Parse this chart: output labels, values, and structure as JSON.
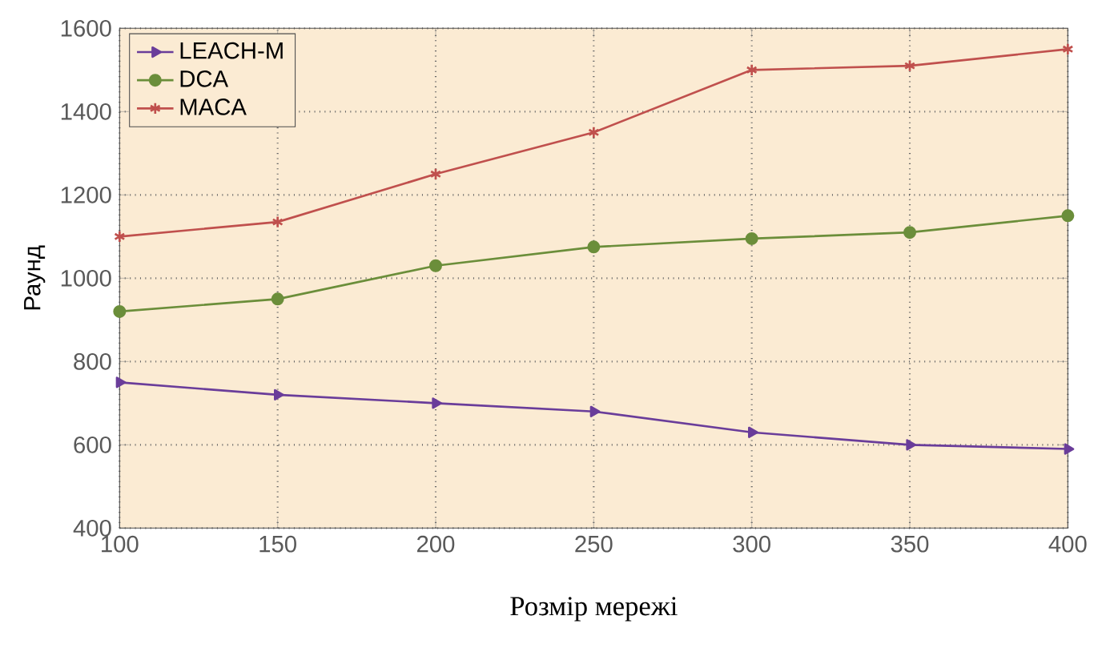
{
  "chart_data": {
    "type": "line",
    "xlabel": "Розмір мережі",
    "ylabel": "Раунд",
    "x": [
      100,
      150,
      200,
      250,
      300,
      350,
      400
    ],
    "series": [
      {
        "name": "LEACH-M",
        "color": "#6a3d9a",
        "marker": "triangle",
        "values": [
          750,
          720,
          700,
          680,
          630,
          600,
          590
        ]
      },
      {
        "name": "DCA",
        "color": "#6b8e3a",
        "marker": "circle",
        "values": [
          920,
          950,
          1030,
          1075,
          1095,
          1110,
          1150
        ]
      },
      {
        "name": "MACA",
        "color": "#c0504d",
        "marker": "cross",
        "values": [
          1100,
          1135,
          1250,
          1350,
          1500,
          1510,
          1550
        ]
      }
    ],
    "xlim": [
      100,
      400
    ],
    "ylim": [
      400,
      1600
    ],
    "xticks": [
      100,
      150,
      200,
      250,
      300,
      350,
      400
    ],
    "yticks": [
      400,
      600,
      800,
      1000,
      1200,
      1400,
      1600
    ],
    "grid": true,
    "legend": "top left",
    "line_style": "solid"
  }
}
